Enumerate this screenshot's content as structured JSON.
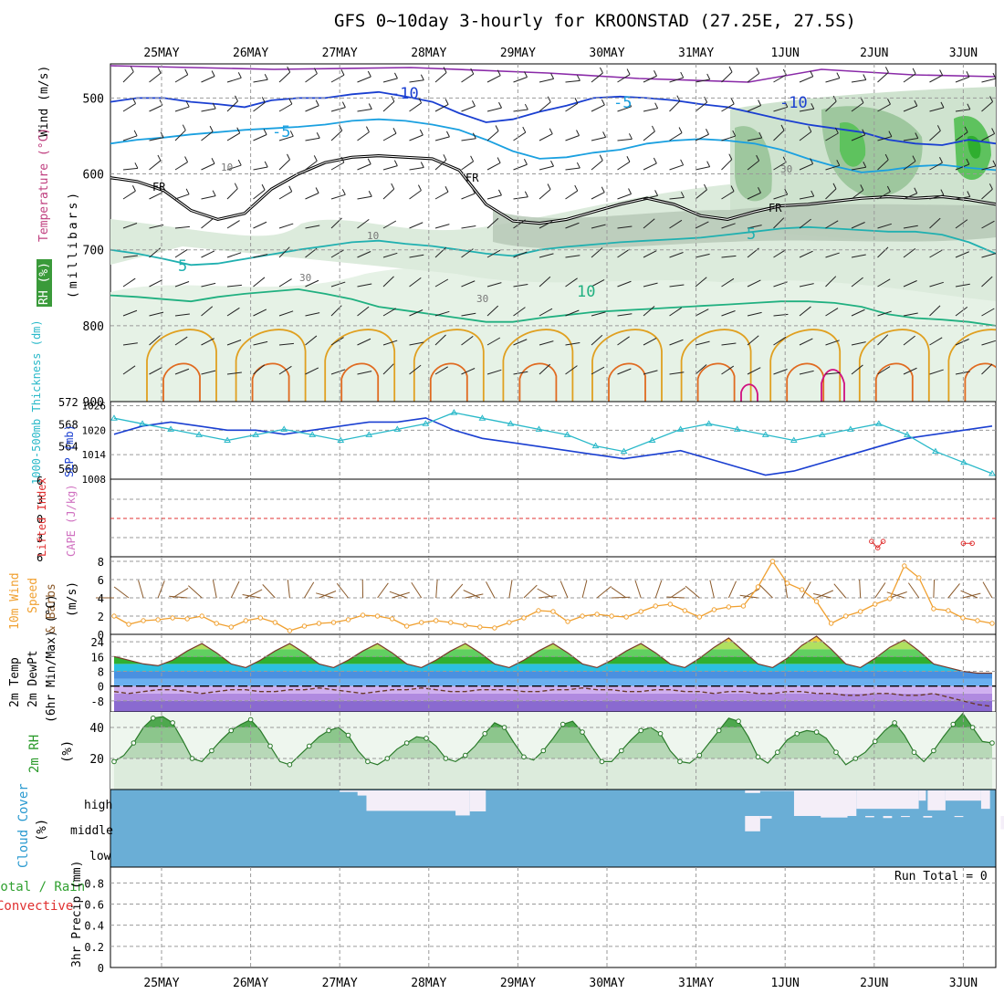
{
  "title": "GFS 0~10day 3-hourly for KROONSTAD (27.25E, 27.5S)",
  "dates": [
    "25MAY",
    "26MAY",
    "27MAY",
    "28MAY",
    "29MAY",
    "30MAY",
    "31MAY",
    "1JUN",
    "2JUN",
    "3JUN"
  ],
  "colors": {
    "grid": "#9a9a9a",
    "pressure_line": "#1a3fd1",
    "thickness_line": "#2ab9c9",
    "wind_speed": "#f0a030",
    "wind_barb": "#8b5a2b",
    "lifted_index_ref": "#e03030",
    "cape": "#e07090",
    "rh_dark": "#3a9a3a",
    "cloud_fill": "#6aaed6",
    "cloud_clear": "#f4eef8",
    "precip_total": "#30a030",
    "precip_convective": "#e03030"
  },
  "upper_panel": {
    "ylabels": [
      {
        "text": "Wind (m/s)",
        "color": "#000000"
      },
      {
        "text": "Temperature (°C)",
        "color": "#c04080"
      },
      {
        "text": "RH (%)",
        "color": "#2a8a2a"
      },
      {
        "text": "(millibars)",
        "color": "#000000"
      }
    ],
    "yticks": [
      "500",
      "600",
      "700",
      "800",
      "900"
    ],
    "ytick_values": [
      500,
      600,
      700,
      800,
      900
    ],
    "ylim": [
      455,
      900
    ],
    "isotherm_labels": [
      "-10",
      "-5",
      "-5",
      "5",
      "5",
      "10",
      "-10",
      "FR",
      "FR",
      "FR"
    ],
    "rh_labels": [
      "10",
      "10",
      "30",
      "30",
      "30"
    ],
    "isotherms": [
      {
        "name": "-10",
        "color": "#1a3fd1",
        "values": [
          505,
          500,
          500,
          505,
          508,
          512,
          503,
          500,
          500,
          495,
          492,
          498,
          505,
          520,
          532,
          528,
          518,
          510,
          500,
          498,
          500,
          503,
          508,
          512,
          520,
          528,
          535,
          540,
          545,
          555,
          560,
          562,
          555,
          560
        ]
      },
      {
        "name": "-5",
        "color": "#1aa0e0",
        "values": [
          560,
          555,
          552,
          548,
          545,
          542,
          540,
          538,
          535,
          530,
          528,
          530,
          535,
          542,
          555,
          570,
          580,
          578,
          572,
          568,
          560,
          556,
          554,
          556,
          560,
          568,
          580,
          590,
          598,
          595,
          590,
          588,
          592,
          595
        ]
      },
      {
        "name": "FR",
        "color": "#000000",
        "values": [
          605,
          610,
          622,
          648,
          660,
          652,
          620,
          600,
          585,
          578,
          576,
          578,
          580,
          595,
          640,
          662,
          665,
          660,
          650,
          640,
          632,
          640,
          655,
          660,
          650,
          642,
          640,
          636,
          632,
          630,
          632,
          630,
          634,
          640
        ]
      },
      {
        "name": "5",
        "color": "#20b0b0",
        "values": [
          700,
          705,
          712,
          720,
          718,
          712,
          706,
          700,
          695,
          690,
          688,
          692,
          695,
          700,
          705,
          708,
          700,
          696,
          693,
          690,
          688,
          686,
          684,
          680,
          676,
          672,
          670,
          672,
          674,
          676,
          676,
          680,
          690,
          705
        ]
      },
      {
        "name": "10",
        "color": "#20b080",
        "values": [
          760,
          762,
          765,
          768,
          762,
          758,
          755,
          752,
          758,
          765,
          775,
          780,
          785,
          790,
          795,
          795,
          790,
          786,
          782,
          780,
          778,
          776,
          774,
          772,
          770,
          768,
          768,
          770,
          775,
          785,
          790,
          792,
          795,
          800
        ]
      }
    ]
  },
  "pressure_thickness_panel": {
    "left_label": "1000-500mb Thickness (dm)",
    "right_label": "SLP (mb)",
    "thickness_ticks": [
      "572",
      "568",
      "564",
      "560"
    ],
    "slp_ticks": [
      "1026",
      "1020",
      "1014",
      "1008"
    ],
    "thickness_lim": [
      558,
      572
    ],
    "slp_lim": [
      1008,
      1027
    ],
    "slp": [
      1019,
      1021,
      1022,
      1021,
      1020,
      1020,
      1019,
      1020,
      1021,
      1022,
      1022,
      1023,
      1020,
      1018,
      1017,
      1016,
      1015,
      1014,
      1013,
      1014,
      1015,
      1013,
      1011,
      1009,
      1010,
      1012,
      1014,
      1016,
      1018,
      1019,
      1020,
      1021
    ],
    "thickness": [
      569,
      568,
      567,
      566,
      565,
      566,
      567,
      566,
      565,
      566,
      567,
      568,
      570,
      569,
      568,
      567,
      566,
      564,
      563,
      565,
      567,
      568,
      567,
      566,
      565,
      566,
      567,
      568,
      566,
      563,
      561,
      559
    ]
  },
  "cape_panel": {
    "left_label": "Lifted Index",
    "right_label": "CAPE (J/kg)",
    "yticks": [
      "6",
      "3",
      "0",
      "3",
      "6"
    ],
    "ytick_values": [
      6,
      3,
      0,
      -3,
      -6
    ],
    "cape_points": [
      {
        "x": 7.97,
        "li": -3.6
      },
      {
        "x": 8.04,
        "li": -4.6
      },
      {
        "x": 8.1,
        "li": -3.6
      },
      {
        "x": 9.0,
        "li": -3.9
      },
      {
        "x": 9.1,
        "li": -3.9
      }
    ]
  },
  "wind10m_panel": {
    "labels": [
      {
        "text": "10m Wind",
        "color": "#f0a030"
      },
      {
        "text": "Speed",
        "color": "#f0a030"
      },
      {
        "text": "& Barbs",
        "color": "#8b5a2b"
      },
      {
        "text": "(m/s)",
        "color": "#000000"
      }
    ],
    "yticks": [
      "8",
      "6",
      "4",
      "2",
      "0"
    ],
    "ytick_values": [
      8,
      6,
      4,
      2,
      0
    ],
    "ylim": [
      0,
      8.5
    ],
    "speed": [
      2.0,
      1.1,
      1.5,
      1.6,
      1.8,
      1.7,
      2.0,
      1.2,
      0.8,
      1.5,
      1.8,
      1.3,
      0.4,
      0.9,
      1.2,
      1.3,
      1.6,
      2.1,
      2.0,
      1.7,
      0.9,
      1.3,
      1.5,
      1.3,
      1.0,
      0.8,
      0.7,
      1.3,
      1.8,
      2.6,
      2.5,
      1.4,
      2.0,
      2.2,
      2.0,
      1.9,
      2.5,
      3.1,
      3.3,
      2.6,
      1.9,
      2.7,
      3.0,
      3.1,
      5.2,
      8.0,
      5.6,
      4.9,
      3.6,
      1.2,
      2.0,
      2.5,
      3.3,
      3.9,
      7.5,
      6.2,
      2.8,
      2.6,
      1.8,
      1.5,
      1.2
    ]
  },
  "temp_panel": {
    "labels": [
      "2m Temp",
      "2m DewPt",
      "(6hr Min/Max) (°C)"
    ],
    "yticks": [
      "24",
      "16",
      "8",
      "0",
      "-8"
    ],
    "ytick_values": [
      24,
      16,
      8,
      0,
      -8
    ],
    "ylim": [
      -14,
      28
    ],
    "temp": [
      16,
      14,
      12,
      11,
      14,
      19,
      23,
      18,
      12,
      10,
      14,
      19,
      23,
      18,
      12,
      10,
      14,
      19,
      23,
      18,
      12,
      10,
      14,
      19,
      23,
      18,
      12,
      10,
      14,
      19,
      23,
      18,
      12,
      10,
      14,
      19,
      23,
      18,
      12,
      10,
      15,
      21,
      26,
      19,
      12,
      10,
      15,
      22,
      27,
      20,
      12,
      10,
      15,
      21,
      25,
      19,
      12,
      10,
      8,
      7,
      7
    ],
    "dewpoint": [
      -3,
      -4,
      -3,
      -2,
      -2,
      -3,
      -4,
      -3,
      -2,
      -2,
      -3,
      -3,
      -2,
      -2,
      -1,
      -2,
      -3,
      -4,
      -3,
      -2,
      -2,
      -1,
      -2,
      -3,
      -3,
      -2,
      -2,
      -2,
      -3,
      -3,
      -2,
      -2,
      -1,
      -2,
      -2,
      -3,
      -3,
      -2,
      -2,
      -3,
      -3,
      -4,
      -3,
      -3,
      -4,
      -4,
      -3,
      -3,
      -4,
      -4,
      -5,
      -5,
      -4,
      -4,
      -5,
      -5,
      -4,
      -6,
      -8,
      -10,
      -11
    ]
  },
  "rh2m_panel": {
    "label": "2m RH",
    "unit": "(%)",
    "yticks": [
      "40",
      "20"
    ],
    "ytick_values": [
      40,
      20
    ],
    "ylim": [
      0,
      50
    ],
    "rh": [
      18,
      22,
      30,
      40,
      46,
      47,
      43,
      32,
      20,
      18,
      25,
      32,
      38,
      42,
      45,
      38,
      28,
      18,
      16,
      22,
      28,
      34,
      38,
      40,
      35,
      25,
      18,
      16,
      20,
      26,
      30,
      34,
      33,
      28,
      20,
      18,
      22,
      28,
      36,
      43,
      40,
      30,
      21,
      19,
      25,
      33,
      42,
      44,
      37,
      27,
      18,
      18,
      25,
      32,
      38,
      40,
      36,
      25,
      18,
      17,
      22,
      30,
      38,
      46,
      44,
      34,
      21,
      17,
      24,
      32,
      36,
      38,
      37,
      33,
      24,
      16,
      20,
      24,
      31,
      38,
      43,
      35,
      24,
      18,
      25,
      34,
      42,
      49,
      40,
      31,
      30
    ]
  },
  "cloud_panel": {
    "label": "Cloud Cover",
    "unit": "(%)",
    "levels": [
      "high",
      "middle",
      "low"
    ],
    "high_clear": [
      {
        "from": 2.0,
        "to": 2.7,
        "amount": 0.06
      },
      {
        "from": 2.2,
        "to": 2.4,
        "amount": 0.2
      },
      {
        "from": 2.3,
        "to": 3.4,
        "amount": 0.8
      },
      {
        "from": 3.3,
        "to": 3.46,
        "amount": 0.98
      },
      {
        "from": 3.46,
        "to": 3.64,
        "amount": 0.82
      },
      {
        "from": 6.55,
        "to": 6.72,
        "amount": 0.1
      },
      {
        "from": 6.72,
        "to": 7.1,
        "amount": 0.02
      },
      {
        "from": 7.1,
        "to": 7.8,
        "amount": 1.0
      },
      {
        "from": 7.8,
        "to": 8.5,
        "amount": 0.72
      },
      {
        "from": 8.5,
        "to": 8.58,
        "amount": 0.4
      },
      {
        "from": 8.6,
        "to": 8.8,
        "amount": 0.78
      },
      {
        "from": 8.8,
        "to": 9.2,
        "amount": 0.4
      },
      {
        "from": 9.2,
        "to": 9.3,
        "amount": 0.72
      }
    ],
    "middle_clear": [
      {
        "from": 6.55,
        "to": 6.72,
        "amount": 0.6
      },
      {
        "from": 6.72,
        "to": 6.85,
        "amount": 0.1
      },
      {
        "from": 7.4,
        "to": 7.7,
        "amount": 0.06
      },
      {
        "from": 7.9,
        "to": 8.0,
        "amount": 0.05
      },
      {
        "from": 8.1,
        "to": 8.2,
        "amount": 0.08
      },
      {
        "from": 8.3,
        "to": 8.4,
        "amount": 0.04
      },
      {
        "from": 8.55,
        "to": 8.65,
        "amount": 0.06
      },
      {
        "from": 8.9,
        "to": 9.0,
        "amount": 0.04
      },
      {
        "from": 9.42,
        "to": 9.58,
        "amount": 0.52
      },
      {
        "from": 9.58,
        "to": 9.7,
        "amount": 0.6
      }
    ]
  },
  "precip_panel": {
    "left_label": "Total / Rain",
    "left_label2": "Convective",
    "ylabel": "3hr Precip (mm)",
    "run_total": "Run Total = 0",
    "yticks": [
      "0.8",
      "0.6",
      "0.4",
      "0.2",
      "0"
    ],
    "ytick_values": [
      0.8,
      0.6,
      0.4,
      0.2,
      0
    ],
    "ylim": [
      0,
      0.95
    ]
  }
}
